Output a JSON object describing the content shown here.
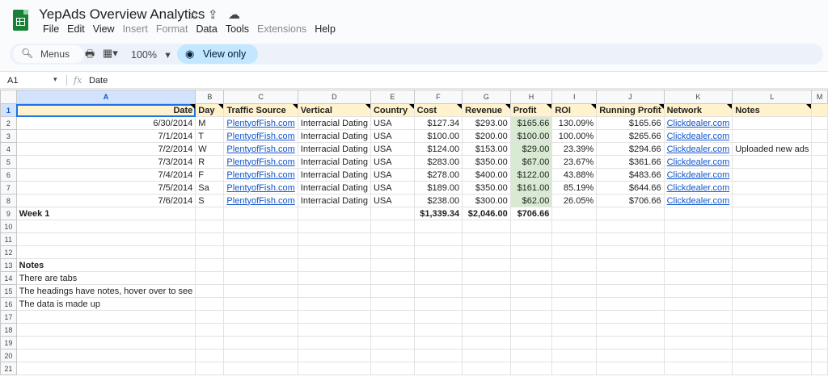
{
  "app": {
    "title": "YepAds Overview Analytics",
    "menus": [
      {
        "label": "File",
        "disabled": false
      },
      {
        "label": "Edit",
        "disabled": false
      },
      {
        "label": "View",
        "disabled": false
      },
      {
        "label": "Insert",
        "disabled": true
      },
      {
        "label": "Format",
        "disabled": true
      },
      {
        "label": "Data",
        "disabled": false
      },
      {
        "label": "Tools",
        "disabled": false
      },
      {
        "label": "Extensions",
        "disabled": true
      },
      {
        "label": "Help",
        "disabled": false
      }
    ]
  },
  "toolbar": {
    "search_label": "Menus",
    "zoom": "100%",
    "view_only_label": "View only"
  },
  "formula_bar": {
    "cell_ref": "A1",
    "fx_label": "fx",
    "value": "Date"
  },
  "sheet": {
    "columns": [
      "A",
      "B",
      "C",
      "D",
      "E",
      "F",
      "G",
      "H",
      "I",
      "J",
      "K",
      "L",
      "M"
    ],
    "header": [
      "Date",
      "Day",
      "Traffic Source",
      "Vertical",
      "Country",
      "Cost",
      "Revenue",
      "Profit",
      "ROI",
      "Running Profit",
      "Network",
      "Notes",
      ""
    ],
    "rows": [
      [
        "6/30/2014",
        "M",
        "PlentyofFish.com",
        "Interracial Dating",
        "USA",
        "$127.34",
        "$293.00",
        "$165.66",
        "130.09%",
        "$165.66",
        "Clickdealer.com",
        "",
        ""
      ],
      [
        "7/1/2014",
        "T",
        "PlentyofFish.com",
        "Interracial Dating",
        "USA",
        "$100.00",
        "$200.00",
        "$100.00",
        "100.00%",
        "$265.66",
        "Clickdealer.com",
        "",
        ""
      ],
      [
        "7/2/2014",
        "W",
        "PlentyofFish.com",
        "Interracial Dating",
        "USA",
        "$124.00",
        "$153.00",
        "$29.00",
        "23.39%",
        "$294.66",
        "Clickdealer.com",
        "Uploaded new ads",
        ""
      ],
      [
        "7/3/2014",
        "R",
        "PlentyofFish.com",
        "Interracial Dating",
        "USA",
        "$283.00",
        "$350.00",
        "$67.00",
        "23.67%",
        "$361.66",
        "Clickdealer.com",
        "",
        ""
      ],
      [
        "7/4/2014",
        "F",
        "PlentyofFish.com",
        "Interracial Dating",
        "USA",
        "$278.00",
        "$400.00",
        "$122.00",
        "43.88%",
        "$483.66",
        "Clickdealer.com",
        "",
        ""
      ],
      [
        "7/5/2014",
        "Sa",
        "PlentyofFish.com",
        "Interracial Dating",
        "USA",
        "$189.00",
        "$350.00",
        "$161.00",
        "85.19%",
        "$644.66",
        "Clickdealer.com",
        "",
        ""
      ],
      [
        "7/6/2014",
        "S",
        "PlentyofFish.com",
        "Interracial Dating",
        "USA",
        "$238.00",
        "$300.00",
        "$62.00",
        "26.05%",
        "$706.66",
        "Clickdealer.com",
        "",
        ""
      ]
    ],
    "totals": {
      "label": "Week 1",
      "cost": "$1,339.34",
      "revenue": "$2,046.00",
      "profit": "$706.66"
    },
    "notes_title": "Notes",
    "notes": [
      "There are tabs",
      "The headings have notes, hover over to see",
      "The data is made up"
    ],
    "row_numbers": [
      "1",
      "2",
      "3",
      "4",
      "5",
      "6",
      "7",
      "8",
      "9",
      "10",
      "11",
      "12",
      "13",
      "14",
      "15",
      "16",
      "17",
      "18",
      "19",
      "20",
      "21"
    ]
  },
  "colors": {
    "header_fill": "#fff2cc",
    "profit_fill": "#d9ead3",
    "link": "#1155cc",
    "selection": "#1a73e8"
  }
}
